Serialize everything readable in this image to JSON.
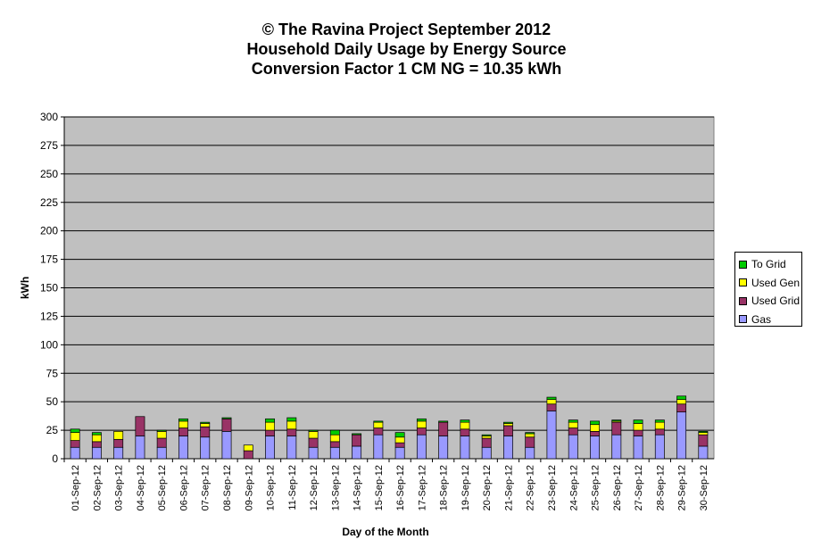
{
  "chart_data": {
    "type": "bar",
    "stacked": true,
    "title_lines": [
      "© The Ravina Project September 2012",
      "Household Daily Usage by Energy Source",
      "Conversion Factor 1 CM NG = 10.35 kWh"
    ],
    "xlabel": "Day of the Month",
    "ylabel": "kWh",
    "ylim": [
      0,
      300
    ],
    "yticks": [
      0,
      25,
      50,
      75,
      100,
      125,
      150,
      175,
      200,
      225,
      250,
      275,
      300
    ],
    "grid": true,
    "legend_position": "right",
    "categories": [
      "01-Sep-12",
      "02-Sep-12",
      "03-Sep-12",
      "04-Sep-12",
      "05-Sep-12",
      "06-Sep-12",
      "07-Sep-12",
      "08-Sep-12",
      "09-Sep-12",
      "10-Sep-12",
      "11-Sep-12",
      "12-Sep-12",
      "13-Sep-12",
      "14-Sep-12",
      "15-Sep-12",
      "16-Sep-12",
      "17-Sep-12",
      "18-Sep-12",
      "19-Sep-12",
      "20-Sep-12",
      "21-Sep-12",
      "22-Sep-12",
      "23-Sep-12",
      "24-Sep-12",
      "25-Sep-12",
      "26-Sep-12",
      "27-Sep-12",
      "28-Sep-12",
      "29-Sep-12",
      "30-Sep-12"
    ],
    "series": [
      {
        "name": "Gas",
        "color": "#9999ff",
        "values": [
          10,
          10,
          10,
          20,
          10,
          20,
          19,
          24,
          0,
          20,
          20,
          10,
          10,
          11,
          21,
          10,
          21,
          20,
          20,
          10,
          20,
          10,
          42,
          21,
          20,
          21,
          20,
          21,
          41,
          11
        ]
      },
      {
        "name": "Used Grid",
        "color": "#993366",
        "values": [
          6,
          5,
          7,
          17,
          8,
          7,
          9,
          11,
          7,
          5,
          6,
          8,
          5,
          10,
          6,
          4,
          6,
          12,
          6,
          8,
          9,
          9,
          6,
          6,
          4,
          11,
          5,
          5,
          7,
          10
        ]
      },
      {
        "name": "Used Gen",
        "color": "#ffff00",
        "values": [
          7,
          6,
          7,
          0,
          6,
          6,
          3,
          0,
          5,
          7,
          7,
          6,
          6,
          0,
          5,
          5,
          6,
          0,
          6,
          2,
          2,
          3,
          4,
          5,
          6,
          1,
          6,
          6,
          4,
          2
        ]
      },
      {
        "name": "To Grid",
        "color": "#00cc00",
        "values": [
          3,
          2,
          0,
          0,
          1,
          2,
          1,
          1,
          0,
          3,
          3,
          1,
          4,
          1,
          1,
          4,
          2,
          1,
          2,
          1,
          1,
          1,
          2,
          2,
          3,
          1,
          3,
          2,
          3,
          1
        ]
      }
    ]
  },
  "legend_order": [
    "To Grid",
    "Used Gen",
    "Used Grid",
    "Gas"
  ]
}
